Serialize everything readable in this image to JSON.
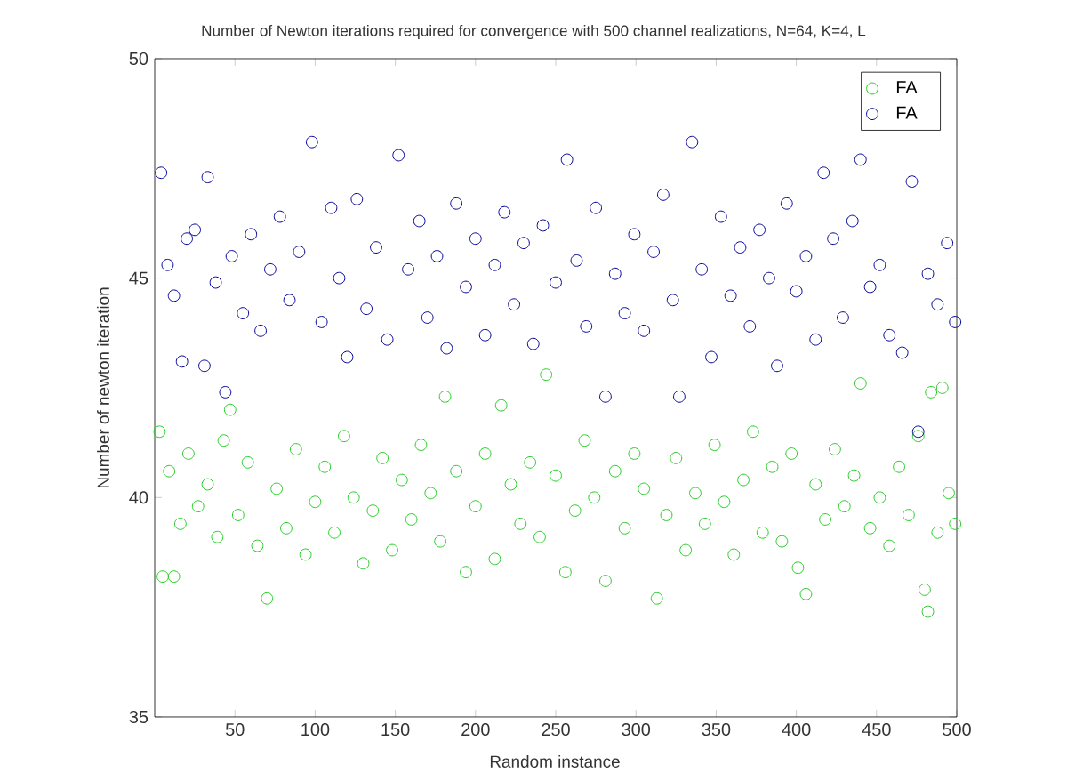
{
  "chart_data": {
    "type": "scatter",
    "title": "Number of Newton iterations required for convergence with 500 channel realizations, N=64, K=4, L",
    "xlabel": "Random instance",
    "ylabel": "Number of newton iteration",
    "xlim": [
      0,
      500
    ],
    "ylim": [
      35,
      50
    ],
    "xticks": [
      50,
      100,
      150,
      200,
      250,
      300,
      350,
      400,
      450,
      500
    ],
    "yticks": [
      35,
      40,
      45,
      50
    ],
    "legend": "top right",
    "marker": "circle",
    "series": [
      {
        "name": "FA",
        "color": "#22cc22",
        "x": [
          3,
          5,
          9,
          12,
          16,
          21,
          27,
          33,
          39,
          43,
          47,
          52,
          58,
          64,
          70,
          76,
          82,
          88,
          94,
          100,
          106,
          112,
          118,
          124,
          130,
          136,
          142,
          148,
          154,
          160,
          166,
          172,
          178,
          181,
          188,
          194,
          200,
          206,
          212,
          216,
          222,
          228,
          234,
          240,
          244,
          250,
          256,
          262,
          268,
          274,
          281,
          287,
          293,
          299,
          305,
          313,
          319,
          325,
          331,
          337,
          343,
          349,
          355,
          361,
          367,
          373,
          379,
          385,
          391,
          397,
          401,
          406,
          412,
          418,
          424,
          430,
          436,
          440,
          446,
          452,
          458,
          464,
          470,
          476,
          480,
          482,
          484,
          488,
          491,
          495,
          499
        ],
        "values": [
          41.5,
          38.2,
          40.6,
          38.2,
          39.4,
          41.0,
          39.8,
          40.3,
          39.1,
          41.3,
          42.0,
          39.6,
          40.8,
          38.9,
          37.7,
          40.2,
          39.3,
          41.1,
          38.7,
          39.9,
          40.7,
          39.2,
          41.4,
          40.0,
          38.5,
          39.7,
          40.9,
          38.8,
          40.4,
          39.5,
          41.2,
          40.1,
          39.0,
          42.3,
          40.6,
          38.3,
          39.8,
          41.0,
          38.6,
          42.1,
          40.3,
          39.4,
          40.8,
          39.1,
          42.8,
          40.5,
          38.3,
          39.7,
          41.3,
          40.0,
          38.1,
          40.6,
          39.3,
          41.0,
          40.2,
          37.7,
          39.6,
          40.9,
          38.8,
          40.1,
          39.4,
          41.2,
          39.9,
          38.7,
          40.4,
          41.5,
          39.2,
          40.7,
          39.0,
          41.0,
          38.4,
          37.8,
          40.3,
          39.5,
          41.1,
          39.8,
          40.5,
          42.6,
          39.3,
          40.0,
          38.9,
          40.7,
          39.6,
          41.4,
          37.9,
          37.4,
          42.4,
          39.2,
          42.5,
          40.1,
          39.4
        ]
      },
      {
        "name": "FA",
        "color": "#000099",
        "x": [
          4,
          8,
          12,
          17,
          20,
          25,
          31,
          33,
          38,
          44,
          48,
          55,
          60,
          66,
          72,
          78,
          84,
          90,
          98,
          104,
          110,
          115,
          120,
          126,
          132,
          138,
          145,
          152,
          158,
          165,
          170,
          176,
          182,
          188,
          194,
          200,
          206,
          212,
          218,
          224,
          230,
          236,
          242,
          250,
          257,
          263,
          269,
          275,
          281,
          287,
          293,
          299,
          305,
          311,
          317,
          323,
          327,
          335,
          341,
          347,
          353,
          359,
          365,
          371,
          377,
          383,
          388,
          394,
          400,
          406,
          412,
          417,
          423,
          429,
          435,
          440,
          446,
          452,
          458,
          466,
          472,
          476,
          482,
          488,
          494,
          499
        ],
        "values": [
          47.4,
          45.3,
          44.6,
          43.1,
          45.9,
          46.1,
          43.0,
          47.3,
          44.9,
          42.4,
          45.5,
          44.2,
          46.0,
          43.8,
          45.2,
          46.4,
          44.5,
          45.6,
          48.1,
          44.0,
          46.6,
          45.0,
          43.2,
          46.8,
          44.3,
          45.7,
          43.6,
          47.8,
          45.2,
          46.3,
          44.1,
          45.5,
          43.4,
          46.7,
          44.8,
          45.9,
          43.7,
          45.3,
          46.5,
          44.4,
          45.8,
          43.5,
          46.2,
          44.9,
          47.7,
          45.4,
          43.9,
          46.6,
          42.3,
          45.1,
          44.2,
          46.0,
          43.8,
          45.6,
          46.9,
          44.5,
          42.3,
          48.1,
          45.2,
          43.2,
          46.4,
          44.6,
          45.7,
          43.9,
          46.1,
          45.0,
          43.0,
          46.7,
          44.7,
          45.5,
          43.6,
          47.4,
          45.9,
          44.1,
          46.3,
          47.7,
          44.8,
          45.3,
          43.7,
          43.3,
          47.2,
          41.5,
          45.1,
          44.4,
          45.8,
          44.0
        ]
      }
    ]
  }
}
